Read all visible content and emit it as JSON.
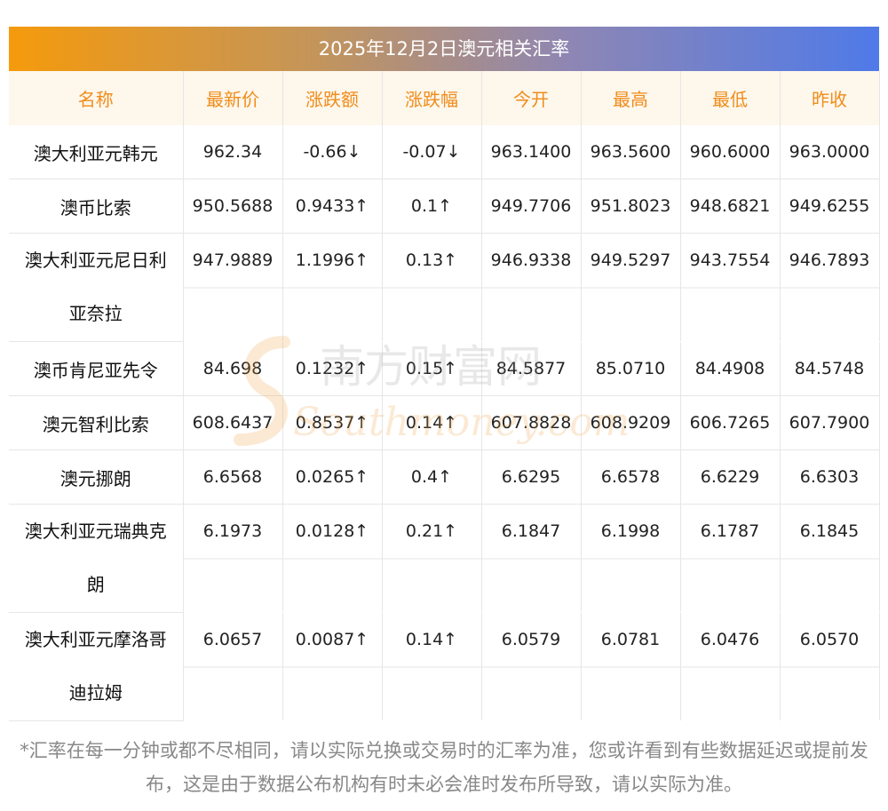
{
  "title": "2025年12月2日澳元相关汇率",
  "columns": [
    "名称",
    "最新价",
    "涨跌额",
    "涨跌幅",
    "今开",
    "最高",
    "最低",
    "昨收"
  ],
  "rows": [
    {
      "name": "澳大利亚元韩元",
      "latest": "962.34",
      "change": "-0.66↓",
      "pct": "-0.07↓",
      "open": "963.1400",
      "high": "963.5600",
      "low": "960.6000",
      "prev": "963.0000",
      "trend": "down"
    },
    {
      "name": "澳币比索",
      "latest": "950.5688",
      "change": "0.9433↑",
      "pct": "0.1↑",
      "open": "949.7706",
      "high": "951.8023",
      "low": "948.6821",
      "prev": "949.6255",
      "trend": "up"
    },
    {
      "name": "澳大利亚元尼日利亚奈拉",
      "latest": "947.9889",
      "change": "1.1996↑",
      "pct": "0.13↑",
      "open": "946.9338",
      "high": "949.5297",
      "low": "943.7554",
      "prev": "946.7893",
      "trend": "up"
    },
    {
      "name": "澳币肯尼亚先令",
      "latest": "84.698",
      "change": "0.1232↑",
      "pct": "0.15↑",
      "open": "84.5877",
      "high": "85.0710",
      "low": "84.4908",
      "prev": "84.5748",
      "trend": "up"
    },
    {
      "name": "澳元智利比索",
      "latest": "608.6437",
      "change": "0.8537↑",
      "pct": "0.14↑",
      "open": "607.8828",
      "high": "608.9209",
      "low": "606.7265",
      "prev": "607.7900",
      "trend": "up"
    },
    {
      "name": "澳元挪朗",
      "latest": "6.6568",
      "change": "0.0265↑",
      "pct": "0.4↑",
      "open": "6.6295",
      "high": "6.6578",
      "low": "6.6229",
      "prev": "6.6303",
      "trend": "up"
    },
    {
      "name": "澳大利亚元瑞典克朗",
      "latest": "6.1973",
      "change": "0.0128↑",
      "pct": "0.21↑",
      "open": "6.1847",
      "high": "6.1998",
      "low": "6.1787",
      "prev": "6.1845",
      "trend": "up"
    },
    {
      "name": "澳大利亚元摩洛哥迪拉姆",
      "latest": "6.0657",
      "change": "0.0087↑",
      "pct": "0.14↑",
      "open": "6.0579",
      "high": "6.0781",
      "low": "6.0476",
      "prev": "6.0570",
      "trend": "up"
    }
  ],
  "watermark": {
    "cn": "南方财富网",
    "en": "Southmoney.com"
  },
  "footnote": "*汇率在每一分钟或都不尽相同，请以实际兑换或交易时的汇率为准，您或许看到有些数据延迟或提前发布，这是由于数据公布机构有时未必会准时发布所导致，请以实际为准。",
  "colors": {
    "up": "#e60012",
    "down": "#1a8a1a",
    "header_text": "#f08c1a",
    "header_bg": "#fdf7ec"
  }
}
